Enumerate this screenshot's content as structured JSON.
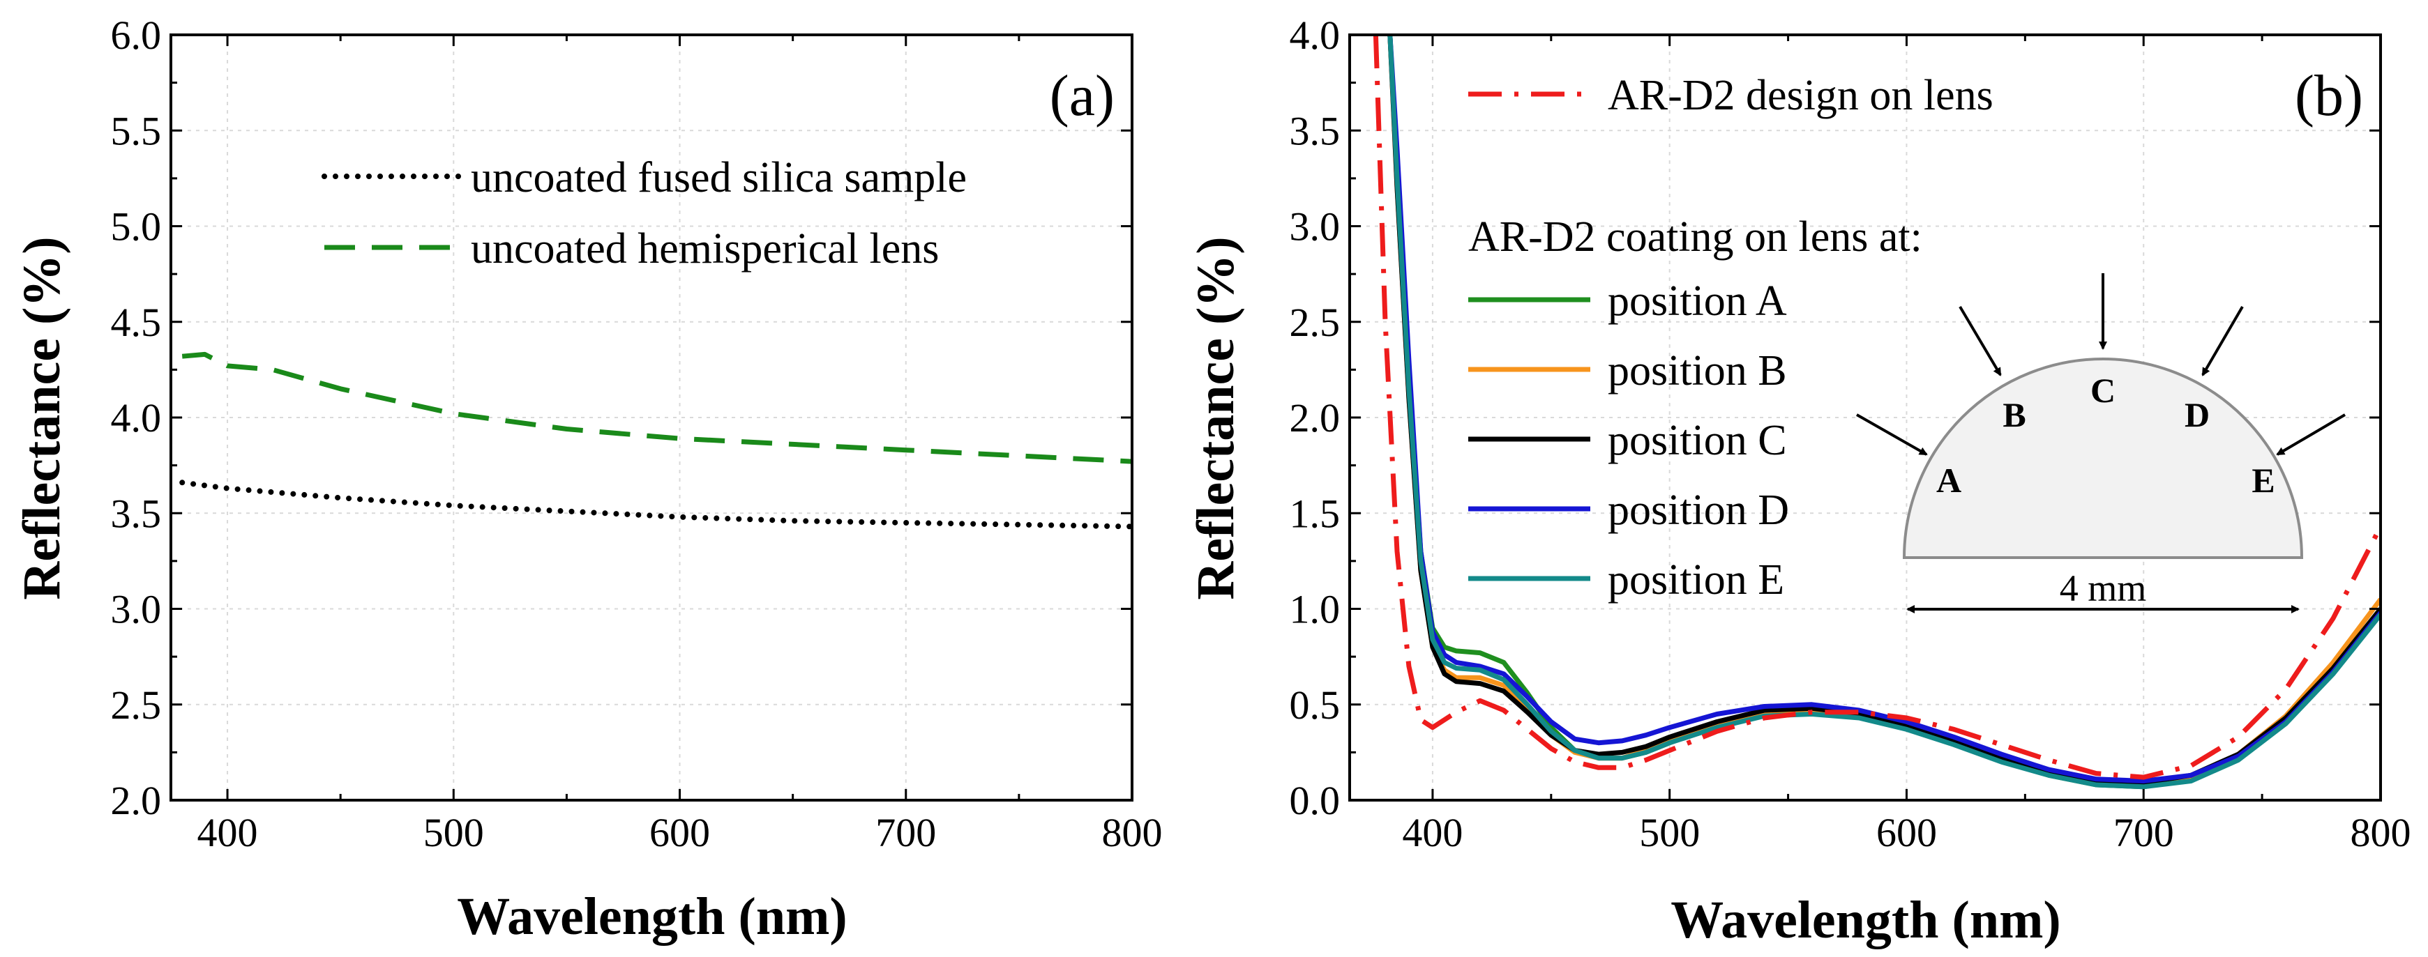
{
  "chart_data": [
    {
      "id": "a",
      "type": "line",
      "panel_label": "(a)",
      "xlabel": "Wavelength (nm)",
      "ylabel": "Reflectance (%)",
      "xlim": [
        375,
        800
      ],
      "ylim": [
        2.0,
        6.0
      ],
      "xticks": [
        400,
        500,
        600,
        700,
        800
      ],
      "yticks": [
        2.0,
        2.5,
        3.0,
        3.5,
        4.0,
        4.5,
        5.0,
        5.5,
        6.0
      ],
      "ytick_labels": [
        "2.0",
        "2.5",
        "3.0",
        "3.5",
        "4.0",
        "4.5",
        "5.0",
        "5.5",
        "6.0"
      ],
      "xtick_labels": [
        "400",
        "500",
        "600",
        "700",
        "800"
      ],
      "legend_position": "top-center",
      "series": [
        {
          "name": "uncoated fused silica sample",
          "color": "#000000",
          "style": "dotted",
          "x": [
            380,
            400,
            420,
            450,
            500,
            550,
            600,
            650,
            700,
            750,
            800
          ],
          "y": [
            3.66,
            3.63,
            3.61,
            3.58,
            3.54,
            3.51,
            3.48,
            3.46,
            3.45,
            3.44,
            3.43
          ]
        },
        {
          "name": "uncoated hemisperical lens",
          "color": "#1a8a1a",
          "style": "dashed",
          "x": [
            380,
            390,
            400,
            420,
            450,
            500,
            550,
            600,
            650,
            700,
            750,
            800
          ],
          "y": [
            4.32,
            4.33,
            4.27,
            4.25,
            4.15,
            4.02,
            3.94,
            3.89,
            3.86,
            3.83,
            3.8,
            3.77
          ]
        }
      ]
    },
    {
      "id": "b",
      "type": "line",
      "panel_label": "(b)",
      "xlabel": "Wavelength (nm)",
      "ylabel": "Reflectance (%)",
      "xlim": [
        365,
        800
      ],
      "ylim": [
        0.0,
        4.0
      ],
      "xticks": [
        400,
        500,
        600,
        700,
        800
      ],
      "yticks": [
        0.0,
        0.5,
        1.0,
        1.5,
        2.0,
        2.5,
        3.0,
        3.5,
        4.0
      ],
      "ytick_labels": [
        "0.0",
        "0.5",
        "1.0",
        "1.5",
        "2.0",
        "2.5",
        "3.0",
        "3.5",
        "4.0"
      ],
      "xtick_labels": [
        "400",
        "500",
        "600",
        "700",
        "800"
      ],
      "legend_position": "top-left",
      "legend_heading": "AR-D2 coating on lens at:",
      "series": [
        {
          "name": "AR-D2 design on lens",
          "color": "#ee1c1c",
          "style": "dashdot",
          "x": [
            376,
            380,
            385,
            390,
            395,
            400,
            410,
            420,
            430,
            440,
            450,
            460,
            470,
            480,
            490,
            500,
            520,
            540,
            560,
            580,
            600,
            620,
            640,
            660,
            680,
            700,
            720,
            740,
            760,
            780,
            800
          ],
          "y": [
            4.0,
            2.5,
            1.3,
            0.7,
            0.42,
            0.38,
            0.46,
            0.52,
            0.47,
            0.37,
            0.27,
            0.2,
            0.17,
            0.17,
            0.21,
            0.26,
            0.36,
            0.43,
            0.46,
            0.46,
            0.43,
            0.37,
            0.29,
            0.21,
            0.14,
            0.12,
            0.18,
            0.33,
            0.58,
            0.95,
            1.43
          ]
        },
        {
          "name": "position A",
          "color": "#1f8f1f",
          "style": "solid",
          "x": [
            382,
            385,
            390,
            395,
            400,
            405,
            410,
            420,
            430,
            440,
            450,
            460,
            470,
            480,
            490,
            500,
            520,
            540,
            560,
            580,
            600,
            620,
            640,
            660,
            680,
            700,
            720,
            740,
            760,
            780,
            800
          ],
          "y": [
            4.0,
            3.3,
            2.2,
            1.3,
            0.9,
            0.8,
            0.78,
            0.77,
            0.72,
            0.56,
            0.38,
            0.26,
            0.22,
            0.22,
            0.25,
            0.3,
            0.39,
            0.45,
            0.46,
            0.44,
            0.38,
            0.3,
            0.21,
            0.13,
            0.08,
            0.07,
            0.11,
            0.23,
            0.42,
            0.68,
            1.0
          ]
        },
        {
          "name": "position B",
          "color": "#f7941d",
          "style": "solid",
          "x": [
            382,
            385,
            390,
            395,
            400,
            405,
            410,
            420,
            430,
            440,
            450,
            460,
            470,
            480,
            490,
            500,
            520,
            540,
            560,
            580,
            600,
            620,
            640,
            660,
            680,
            700,
            720,
            740,
            760,
            780,
            800
          ],
          "y": [
            4.0,
            3.2,
            2.1,
            1.2,
            0.8,
            0.68,
            0.64,
            0.64,
            0.6,
            0.48,
            0.34,
            0.25,
            0.22,
            0.22,
            0.26,
            0.31,
            0.4,
            0.46,
            0.47,
            0.45,
            0.39,
            0.31,
            0.22,
            0.14,
            0.09,
            0.08,
            0.12,
            0.24,
            0.44,
            0.72,
            1.05
          ]
        },
        {
          "name": "position C",
          "color": "#000000",
          "style": "solid",
          "x": [
            382,
            385,
            390,
            395,
            400,
            405,
            410,
            420,
            430,
            440,
            450,
            460,
            470,
            480,
            490,
            500,
            520,
            540,
            560,
            580,
            600,
            620,
            640,
            660,
            680,
            700,
            720,
            740,
            760,
            780,
            800
          ],
          "y": [
            4.0,
            3.2,
            2.1,
            1.2,
            0.8,
            0.66,
            0.62,
            0.61,
            0.57,
            0.46,
            0.34,
            0.26,
            0.24,
            0.25,
            0.28,
            0.33,
            0.41,
            0.47,
            0.48,
            0.45,
            0.39,
            0.31,
            0.22,
            0.14,
            0.09,
            0.09,
            0.13,
            0.24,
            0.43,
            0.69,
            1.0
          ]
        },
        {
          "name": "position D",
          "color": "#1515d4",
          "style": "solid",
          "x": [
            382,
            385,
            390,
            395,
            400,
            405,
            410,
            420,
            430,
            440,
            450,
            460,
            470,
            480,
            490,
            500,
            520,
            540,
            560,
            580,
            600,
            620,
            640,
            660,
            680,
            700,
            720,
            740,
            760,
            780,
            800
          ],
          "y": [
            4.0,
            3.4,
            2.3,
            1.3,
            0.88,
            0.76,
            0.72,
            0.7,
            0.66,
            0.54,
            0.41,
            0.32,
            0.3,
            0.31,
            0.34,
            0.38,
            0.45,
            0.49,
            0.5,
            0.47,
            0.41,
            0.33,
            0.24,
            0.16,
            0.11,
            0.1,
            0.13,
            0.23,
            0.41,
            0.67,
            0.98
          ]
        },
        {
          "name": "position E",
          "color": "#138a8a",
          "style": "solid",
          "x": [
            382,
            385,
            390,
            395,
            400,
            405,
            410,
            420,
            430,
            440,
            450,
            460,
            470,
            480,
            490,
            500,
            520,
            540,
            560,
            580,
            600,
            620,
            640,
            660,
            680,
            700,
            720,
            740,
            760,
            780,
            800
          ],
          "y": [
            4.0,
            3.25,
            2.15,
            1.25,
            0.84,
            0.72,
            0.69,
            0.68,
            0.63,
            0.5,
            0.36,
            0.26,
            0.22,
            0.22,
            0.25,
            0.3,
            0.38,
            0.44,
            0.45,
            0.43,
            0.37,
            0.29,
            0.2,
            0.13,
            0.08,
            0.07,
            0.1,
            0.21,
            0.4,
            0.66,
            0.97
          ]
        }
      ],
      "inset": {
        "caption": "4 mm",
        "positions": [
          "A",
          "B",
          "C",
          "D",
          "E"
        ]
      }
    }
  ]
}
